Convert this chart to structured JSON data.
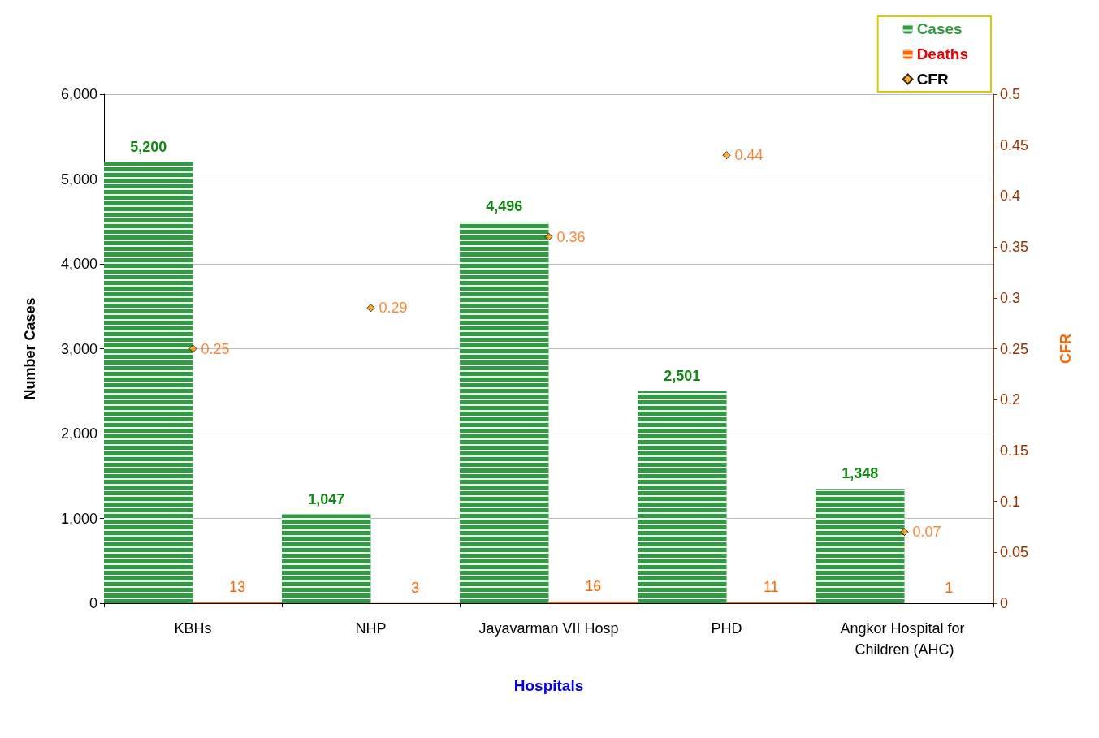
{
  "chart_data": {
    "type": "bar",
    "xlabel": "Hospitals",
    "ylabel": "Number Cases",
    "y2label": "CFR",
    "categories": [
      "KBHs",
      "NHP",
      "Jayavarman VII Hosp",
      "PHD",
      "Angkor Hospital for Children (AHC)"
    ],
    "series": [
      {
        "name": "Cases",
        "color": "#339944",
        "values": [
          5200,
          1047,
          4496,
          2501,
          1348
        ],
        "value_labels": [
          "5,200",
          "1,047",
          "4,496",
          "2,501",
          "1,348"
        ]
      },
      {
        "name": "Deaths",
        "color": "#ff6600",
        "values": [
          13,
          3,
          16,
          11,
          1
        ]
      },
      {
        "name": "CFR",
        "type": "scatter",
        "axis": "y2",
        "marker": "diamond",
        "color": "#ff9900",
        "values": [
          0.25,
          0.29,
          0.36,
          0.44,
          0.07
        ]
      }
    ],
    "ylim": [
      0,
      6000
    ],
    "yticks": [
      0,
      {
        "value": 1000,
        "label": "1,000"
      },
      {
        "value": 2000,
        "label": "2,000"
      },
      {
        "value": 3000,
        "label": "3,000"
      },
      {
        "value": 4000,
        "label": "4,000"
      },
      {
        "value": 5000,
        "label": "5,000"
      },
      {
        "value": 6000,
        "label": "6,000"
      }
    ],
    "y2lim": [
      0,
      0.5
    ],
    "y2ticks": [
      0,
      0.05,
      0.1,
      0.15,
      0.2,
      0.25,
      0.3,
      0.35,
      0.4,
      0.45,
      0.5
    ],
    "data_labels": true,
    "grid": "y",
    "legend": "top right"
  }
}
